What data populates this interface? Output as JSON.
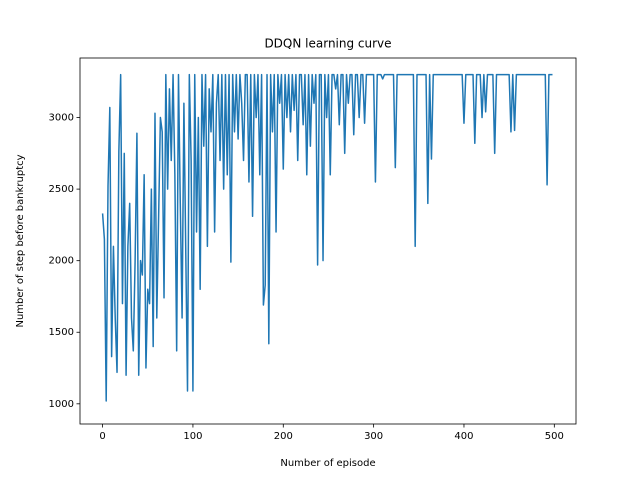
{
  "chart_data": {
    "type": "line",
    "title": "DDQN learning curve",
    "xlabel": "Number of episode",
    "ylabel": "Number of step before bankruptcy",
    "color": "#1f77b4",
    "xlim": [
      -25,
      524
    ],
    "ylim": [
      859,
      3416
    ],
    "xticks": [
      0,
      100,
      200,
      300,
      400,
      500
    ],
    "yticks": [
      1000,
      1500,
      2000,
      2500,
      3000
    ],
    "x": [
      0,
      2,
      4,
      6,
      8,
      10,
      12,
      14,
      16,
      18,
      20,
      22,
      24,
      26,
      28,
      30,
      32,
      34,
      36,
      38,
      40,
      42,
      44,
      46,
      48,
      50,
      52,
      54,
      56,
      58,
      60,
      62,
      64,
      66,
      68,
      70,
      72,
      74,
      76,
      78,
      80,
      82,
      84,
      86,
      88,
      90,
      92,
      94,
      96,
      98,
      100,
      102,
      104,
      106,
      108,
      110,
      112,
      114,
      116,
      118,
      120,
      122,
      124,
      126,
      128,
      130,
      132,
      134,
      136,
      138,
      140,
      142,
      144,
      146,
      148,
      150,
      152,
      154,
      156,
      158,
      160,
      162,
      164,
      166,
      168,
      170,
      172,
      174,
      176,
      178,
      180,
      182,
      184,
      186,
      188,
      190,
      192,
      194,
      196,
      198,
      200,
      202,
      204,
      206,
      208,
      210,
      212,
      214,
      216,
      218,
      220,
      222,
      224,
      226,
      228,
      230,
      232,
      234,
      236,
      238,
      240,
      242,
      244,
      246,
      248,
      250,
      252,
      254,
      256,
      258,
      260,
      262,
      264,
      266,
      268,
      270,
      272,
      274,
      276,
      278,
      280,
      282,
      284,
      286,
      288,
      290,
      292,
      294,
      296,
      298,
      300,
      302,
      304,
      306,
      308,
      310,
      312,
      314,
      316,
      318,
      320,
      322,
      324,
      326,
      328,
      330,
      332,
      334,
      336,
      338,
      340,
      342,
      344,
      346,
      348,
      350,
      352,
      354,
      356,
      358,
      360,
      362,
      364,
      366,
      368,
      370,
      372,
      374,
      376,
      378,
      380,
      382,
      384,
      386,
      388,
      390,
      392,
      394,
      396,
      398,
      400,
      402,
      404,
      406,
      408,
      410,
      412,
      414,
      416,
      418,
      420,
      422,
      424,
      426,
      428,
      430,
      432,
      434,
      436,
      438,
      440,
      442,
      444,
      446,
      448,
      450,
      452,
      454,
      456,
      458,
      460,
      462,
      464,
      466,
      468,
      470,
      472,
      474,
      476,
      478,
      480,
      482,
      484,
      486,
      488,
      490,
      492,
      494,
      496,
      498
    ],
    "values": [
      2330,
      2150,
      1020,
      2520,
      3070,
      1330,
      2100,
      1600,
      1220,
      2760,
      3300,
      1700,
      2750,
      1200,
      2100,
      2400,
      1600,
      1370,
      2000,
      2890,
      1200,
      2000,
      1900,
      2600,
      1250,
      1800,
      1700,
      2500,
      1400,
      3030,
      1600,
      2300,
      3000,
      2900,
      1740,
      3300,
      2500,
      3200,
      2700,
      3300,
      2600,
      1370,
      3300,
      2400,
      1600,
      3100,
      2100,
      1090,
      3300,
      2700,
      1090,
      3300,
      2200,
      3000,
      1800,
      3300,
      2800,
      3300,
      2100,
      3200,
      2900,
      3300,
      2200,
      3100,
      3300,
      2700,
      3300,
      2500,
      3300,
      2600,
      3300,
      1990,
      3300,
      2900,
      3300,
      2850,
      3300,
      3100,
      2700,
      3300,
      3300,
      2550,
      3300,
      2310,
      3300,
      3000,
      3300,
      2600,
      3300,
      1690,
      1830,
      3300,
      1420,
      3300,
      2900,
      3300,
      2200,
      3300,
      3100,
      3300,
      2640,
      3300,
      3000,
      3300,
      2900,
      3300,
      3050,
      3300,
      2700,
      3300,
      3300,
      2950,
      3300,
      2600,
      3300,
      2800,
      3300,
      3100,
      3300,
      1970,
      3300,
      3300,
      2000,
      3300,
      3000,
      3300,
      2600,
      3300,
      3300,
      3200,
      3300,
      2950,
      3300,
      3300,
      2750,
      3300,
      3100,
      3300,
      3300,
      2880,
      3300,
      3300,
      3000,
      3300,
      3300,
      2960,
      3300,
      3300,
      3300,
      3300,
      3300,
      2550,
      3300,
      3300,
      3300,
      3270,
      3300,
      3300,
      3300,
      3300,
      3300,
      3300,
      2650,
      3300,
      3300,
      3300,
      3300,
      3300,
      3300,
      3300,
      3300,
      3300,
      3300,
      2100,
      3300,
      3300,
      3300,
      3300,
      3300,
      3300,
      2400,
      3300,
      2710,
      3300,
      3300,
      3300,
      3300,
      3300,
      3300,
      3300,
      3300,
      3300,
      3300,
      3300,
      3300,
      3300,
      3300,
      3300,
      3300,
      3300,
      2960,
      3300,
      3300,
      3300,
      3300,
      3300,
      2820,
      3300,
      3300,
      3300,
      3000,
      3300,
      3040,
      3300,
      3300,
      3300,
      3300,
      2750,
      3300,
      3300,
      3300,
      3300,
      3300,
      3300,
      3300,
      3300,
      2900,
      3300,
      2910,
      3300,
      3300,
      3300,
      3300,
      3300,
      3300,
      3300,
      3300,
      3300,
      3300,
      3300,
      3300,
      3300,
      3300,
      3300,
      3300,
      3300,
      2530,
      3300,
      3300,
      3300
    ]
  }
}
